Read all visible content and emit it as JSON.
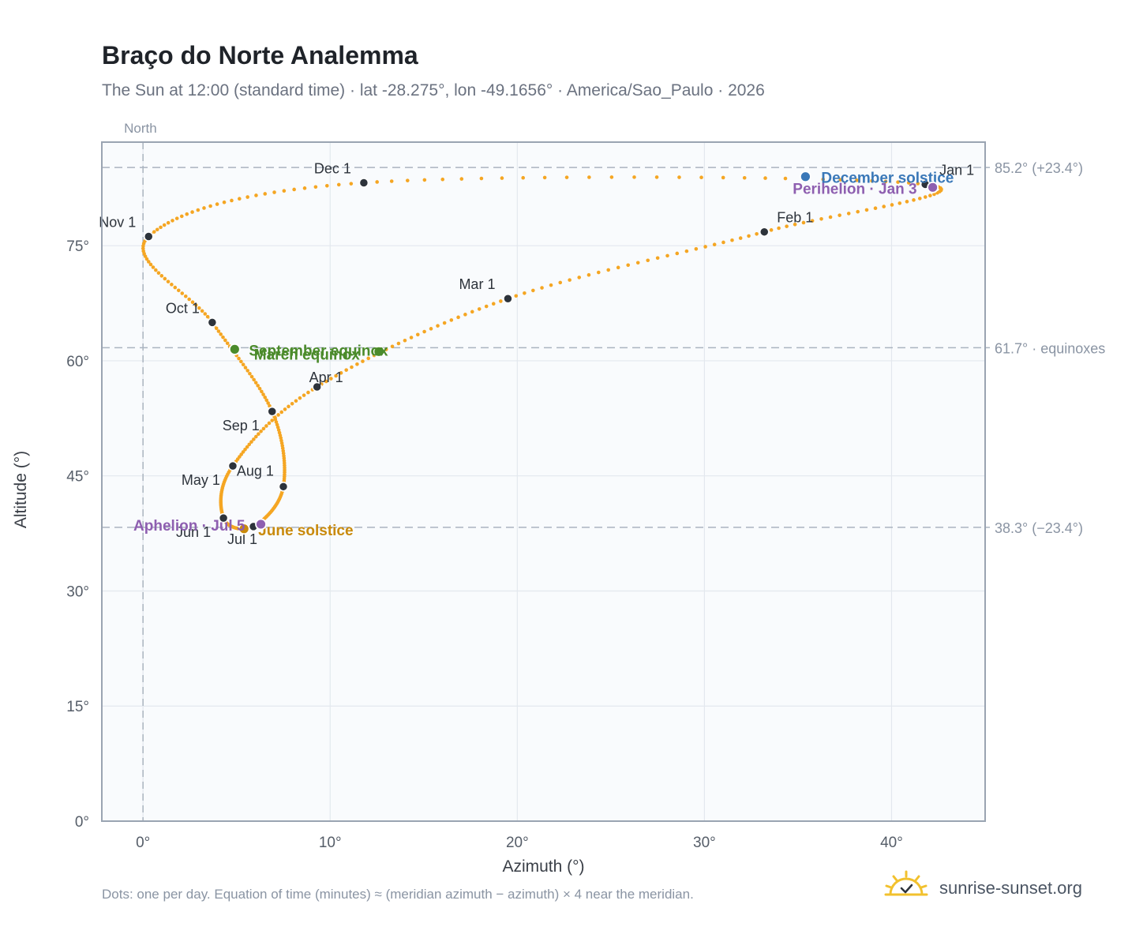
{
  "header": {
    "title": "Braço do Norte Analemma",
    "subtitle": "The Sun at 12:00 (standard time) · lat -28.275°, lon -49.1656° · America/Sao_Paulo · 2026"
  },
  "footer": {
    "note": "Dots: one per day. Equation of time (minutes) ≈ (meridian azimuth − azimuth) × 4 near the meridian.",
    "brand": "sunrise-sunset.org"
  },
  "colors": {
    "path": "#f5a623",
    "month_marker": "#2d333b",
    "solstice_december": "#3a78b8",
    "solstice_june": "#c98a0c",
    "equinox": "#4b8b2b",
    "apsis": "#8e5fb0",
    "reference_line": "#aab4c0",
    "plot_background": "#f9fbfd"
  },
  "chart_data": {
    "type": "scatter",
    "xlabel": "Azimuth (°)",
    "ylabel": "Altitude (°)",
    "xlim": [
      -2.2,
      45
    ],
    "ylim": [
      0,
      88.5
    ],
    "xticks": [
      0,
      10,
      20,
      30,
      40
    ],
    "yticks": [
      0,
      15,
      30,
      45,
      60,
      75
    ],
    "grid": true,
    "north_label": "North",
    "north_azimuth": 0,
    "reference_lines": [
      {
        "altitude": 85.2,
        "label": "85.2° (+23.4°)"
      },
      {
        "altitude": 61.7,
        "label": "61.7° · equinoxes"
      },
      {
        "altitude": 38.3,
        "label": "38.3° (−23.4°)"
      }
    ],
    "month_markers": [
      {
        "label": "Jan 1",
        "azimuth": 41.8,
        "altitude": 83.0
      },
      {
        "label": "Feb 1",
        "azimuth": 33.2,
        "altitude": 76.8
      },
      {
        "label": "Mar 1",
        "azimuth": 19.5,
        "altitude": 68.1
      },
      {
        "label": "Apr 1",
        "azimuth": 9.3,
        "altitude": 56.6
      },
      {
        "label": "May 1",
        "azimuth": 4.8,
        "altitude": 46.3
      },
      {
        "label": "Jun 1",
        "azimuth": 4.3,
        "altitude": 39.5
      },
      {
        "label": "Jul 1",
        "azimuth": 5.9,
        "altitude": 38.4
      },
      {
        "label": "Aug 1",
        "azimuth": 7.5,
        "altitude": 43.6
      },
      {
        "label": "Sep 1",
        "azimuth": 6.9,
        "altitude": 53.4
      },
      {
        "label": "Oct 1",
        "azimuth": 3.7,
        "altitude": 65.0
      },
      {
        "label": "Nov 1",
        "azimuth": 0.3,
        "altitude": 76.2
      },
      {
        "label": "Dec 1",
        "azimuth": 11.8,
        "altitude": 83.2
      }
    ],
    "events": [
      {
        "label": "December solstice",
        "azimuth": 35.4,
        "altitude": 84.0,
        "kind": "solstice_december"
      },
      {
        "label": "June solstice",
        "azimuth": 5.4,
        "altitude": 38.1,
        "kind": "solstice_june"
      },
      {
        "label": "March equinox",
        "azimuth": 12.6,
        "altitude": 61.2,
        "kind": "equinox"
      },
      {
        "label": "September equinox",
        "azimuth": 4.9,
        "altitude": 61.5,
        "kind": "equinox"
      },
      {
        "label": "Perihelion · Jan 3",
        "azimuth": 42.2,
        "altitude": 82.6,
        "kind": "apsis"
      },
      {
        "label": "Aphelion · Jul 5",
        "azimuth": 6.3,
        "altitude": 38.7,
        "kind": "apsis"
      }
    ]
  }
}
